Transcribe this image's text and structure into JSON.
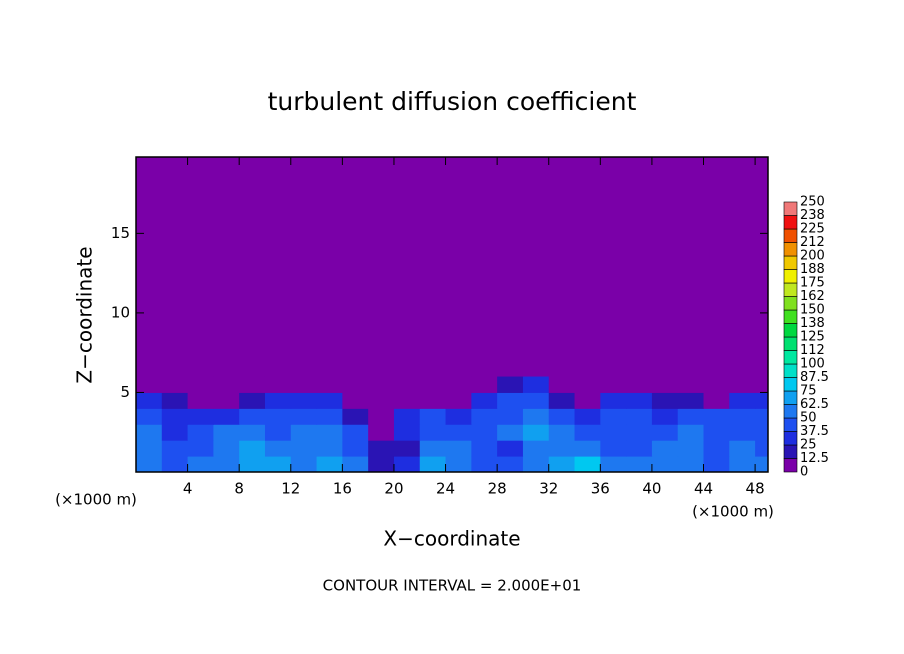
{
  "chart_data": {
    "type": "contour",
    "title": "turbulent diffusion coefficient",
    "x_label": "X−coordinate",
    "y_label": "Z−coordinate",
    "x_unit": "(×1000 m)",
    "y_unit": "(×1000 m)",
    "annotation": "CONTOUR INTERVAL = 2.000E+01",
    "xlim": [
      0,
      49
    ],
    "ylim": [
      0,
      19.8
    ],
    "xticks": [
      4,
      8,
      12,
      16,
      20,
      24,
      28,
      32,
      36,
      40,
      44,
      48
    ],
    "yticks": [
      5,
      10,
      15
    ],
    "field": {
      "x": [
        1,
        3,
        5,
        7,
        9,
        11,
        13,
        15,
        17,
        19,
        21,
        23,
        25,
        27,
        29,
        31,
        33,
        35,
        37,
        39,
        41,
        43,
        45,
        47,
        49
      ],
      "z": [
        0.5,
        1.5,
        2.5,
        3.5,
        4.5,
        5.5
      ],
      "values": [
        [
          60,
          45,
          50,
          55,
          70,
          65,
          60,
          70,
          55,
          20,
          25,
          70,
          55,
          45,
          40,
          50,
          65,
          75,
          50,
          60,
          55,
          50,
          45,
          55,
          50
        ],
        [
          55,
          40,
          45,
          60,
          65,
          55,
          50,
          60,
          45,
          15,
          20,
          55,
          50,
          40,
          35,
          60,
          55,
          50,
          40,
          45,
          50,
          55,
          40,
          50,
          45
        ],
        [
          50,
          35,
          40,
          50,
          55,
          45,
          55,
          55,
          40,
          10,
          30,
          45,
          40,
          45,
          50,
          70,
          55,
          45,
          45,
          40,
          45,
          50,
          45,
          45,
          40
        ],
        [
          40,
          35,
          30,
          30,
          40,
          45,
          45,
          40,
          20,
          5,
          35,
          45,
          30,
          40,
          45,
          60,
          40,
          30,
          40,
          40,
          35,
          40,
          40,
          40,
          40
        ],
        [
          30,
          20,
          10,
          5,
          15,
          30,
          35,
          25,
          5,
          0,
          5,
          10,
          5,
          25,
          40,
          45,
          15,
          10,
          35,
          30,
          20,
          15,
          10,
          25,
          30
        ],
        [
          0,
          0,
          0,
          0,
          0,
          0,
          0,
          0,
          0,
          0,
          0,
          0,
          0,
          0,
          15,
          25,
          0,
          0,
          0,
          0,
          0,
          0,
          0,
          0,
          0
        ]
      ]
    },
    "colorbar": {
      "levels": [
        0,
        12.5,
        25,
        37.5,
        50,
        62.5,
        75,
        87.5,
        100,
        {
          "value": 112.5,
          "label": "112"
        },
        125,
        {
          "value": 137.5,
          "label": "138"
        },
        150,
        {
          "value": 162.5,
          "label": "162"
        },
        175,
        {
          "value": 187.5,
          "label": "188"
        },
        200,
        {
          "value": 212.5,
          "label": "212"
        },
        225,
        {
          "value": 237.5,
          "label": "238"
        },
        250
      ],
      "colors": [
        "#7a00a8",
        "#2a14b4",
        "#1e2ee0",
        "#1e50f0",
        "#1e78f0",
        "#10a0f0",
        "#00c8f0",
        "#00e0c8",
        "#00e8a0",
        "#00e070",
        "#00d840",
        "#40e020",
        "#80e020",
        "#c0e820",
        "#f0f000",
        "#f0c800",
        "#f09000",
        "#f05000",
        "#f01010",
        "#f07878"
      ]
    }
  }
}
